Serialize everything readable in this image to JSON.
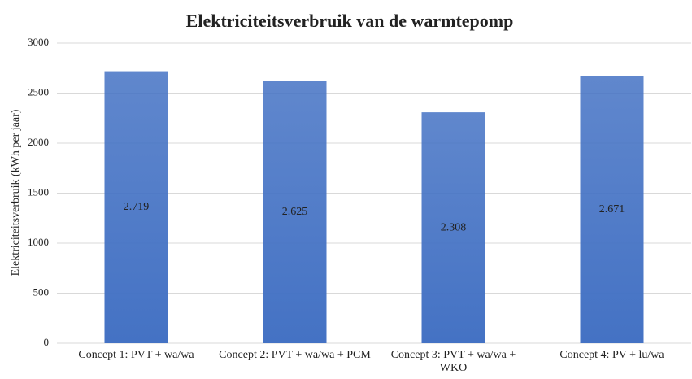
{
  "chart_data": {
    "type": "bar",
    "title": "Elektriciteitsverbruik van de warmtepomp",
    "y_label": "Elektriciteitsverbruik (kWh per jaar)",
    "categories": [
      "Concept 1: PVT + wa/wa",
      "Concept 2: PVT + wa/wa + PCM",
      "Concept 3: PVT + wa/wa + WKO",
      "Concept 4: PV + lu/wa"
    ],
    "values": [
      2719,
      2625,
      2308,
      2671
    ],
    "value_labels": [
      "2.719",
      "2.625",
      "2.308",
      "2.671"
    ],
    "color": "#4472c4",
    "ylim": [
      0,
      3000
    ],
    "yticks": [
      0,
      500,
      1000,
      1500,
      2000,
      2500,
      3000
    ],
    "grid": true
  }
}
